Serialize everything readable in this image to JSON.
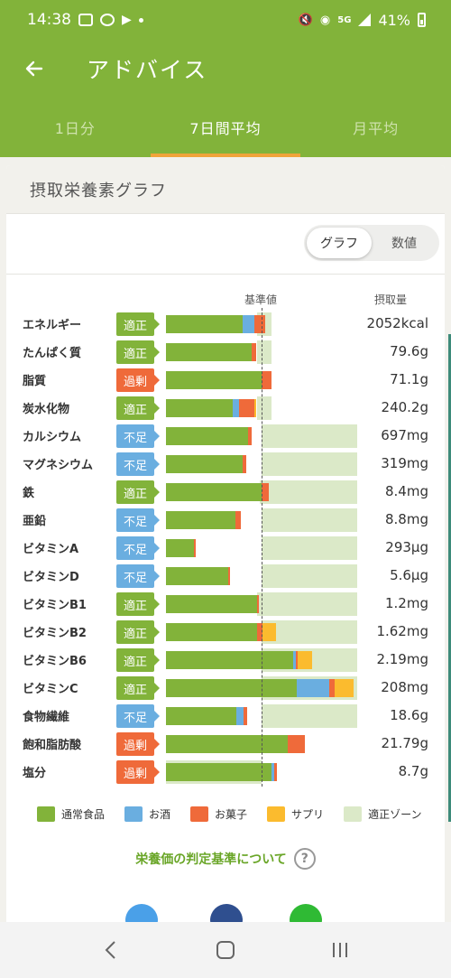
{
  "status": {
    "time": "14:38",
    "network": "5G",
    "battery": "41%"
  },
  "header": {
    "title": "アドバイス"
  },
  "tabs": [
    {
      "label": "1日分",
      "active": false
    },
    {
      "label": "7日間平均",
      "active": true
    },
    {
      "label": "月平均",
      "active": false
    }
  ],
  "card": {
    "title": "摂取栄養素グラフ"
  },
  "toggle": {
    "graph": "グラフ",
    "values": "数値",
    "selected": "graph"
  },
  "table": {
    "ref_label": "基準値",
    "intake_label": "摂取量"
  },
  "colors": {
    "food": "#82b33a",
    "alcohol": "#6aaee0",
    "snack": "#ef6a3a",
    "supplement": "#fbbb2e",
    "zone": "#dbe9c8"
  },
  "nutrients": [
    {
      "name": "エネルギー",
      "status": "適正",
      "kind": "ok",
      "value": "2052kcal",
      "food": 0.8,
      "alcohol": 0.12,
      "snack": 0.12,
      "supplement": 0.0,
      "zone": [
        0.95,
        1.1
      ]
    },
    {
      "name": "たんぱく質",
      "status": "適正",
      "kind": "ok",
      "value": "79.6g",
      "food": 0.9,
      "alcohol": 0.0,
      "snack": 0.04,
      "supplement": 0.0,
      "zone": [
        0.95,
        1.1
      ]
    },
    {
      "name": "脂質",
      "status": "過剰",
      "kind": "over",
      "value": "71.1g",
      "food": 1.0,
      "alcohol": 0.0,
      "snack": 0.1,
      "supplement": 0.0,
      "zone": [
        0.0,
        0.0
      ]
    },
    {
      "name": "炭水化物",
      "status": "適正",
      "kind": "ok",
      "value": "240.2g",
      "food": 0.7,
      "alcohol": 0.06,
      "snack": 0.16,
      "supplement": 0.02,
      "zone": [
        0.95,
        1.1
      ]
    },
    {
      "name": "カルシウム",
      "status": "不足",
      "kind": "short",
      "value": "697mg",
      "food": 0.86,
      "alcohol": 0.0,
      "snack": 0.04,
      "supplement": 0.0,
      "zone": [
        1.0,
        2.0
      ]
    },
    {
      "name": "マグネシウム",
      "status": "不足",
      "kind": "short",
      "value": "319mg",
      "food": 0.8,
      "alcohol": 0.0,
      "snack": 0.04,
      "supplement": 0.0,
      "zone": [
        1.0,
        2.0
      ]
    },
    {
      "name": "鉄",
      "status": "適正",
      "kind": "ok",
      "value": "8.4mg",
      "food": 1.0,
      "alcohol": 0.0,
      "snack": 0.08,
      "supplement": 0.0,
      "zone": [
        0.98,
        2.0
      ]
    },
    {
      "name": "亜鉛",
      "status": "不足",
      "kind": "short",
      "value": "8.8mg",
      "food": 0.73,
      "alcohol": 0.0,
      "snack": 0.05,
      "supplement": 0.0,
      "zone": [
        1.0,
        2.0
      ]
    },
    {
      "name": "ビタミンA",
      "status": "不足",
      "kind": "short",
      "value": "293µg",
      "food": 0.29,
      "alcohol": 0.0,
      "snack": 0.02,
      "supplement": 0.0,
      "zone": [
        1.0,
        2.0
      ]
    },
    {
      "name": "ビタミンD",
      "status": "不足",
      "kind": "short",
      "value": "5.6µg",
      "food": 0.65,
      "alcohol": 0.0,
      "snack": 0.01,
      "supplement": 0.0,
      "zone": [
        1.0,
        2.0
      ]
    },
    {
      "name": "ビタミンB1",
      "status": "適正",
      "kind": "ok",
      "value": "1.2mg",
      "food": 0.95,
      "alcohol": 0.0,
      "snack": 0.02,
      "supplement": 0.0,
      "zone": [
        0.95,
        2.0
      ]
    },
    {
      "name": "ビタミンB2",
      "status": "適正",
      "kind": "ok",
      "value": "1.62mg",
      "food": 0.95,
      "alcohol": 0.0,
      "snack": 0.06,
      "supplement": 0.14,
      "zone": [
        1.0,
        2.0
      ]
    },
    {
      "name": "ビタミンB6",
      "status": "適正",
      "kind": "ok",
      "value": "2.19mg",
      "food": 1.33,
      "alcohol": 0.03,
      "snack": 0.02,
      "supplement": 0.15,
      "zone": [
        1.0,
        2.0
      ]
    },
    {
      "name": "ビタミンC",
      "status": "適正",
      "kind": "ok",
      "value": "208mg",
      "food": 1.37,
      "alcohol": 0.34,
      "snack": 0.05,
      "supplement": 0.2,
      "zone": [
        1.0,
        2.0
      ]
    },
    {
      "name": "食物繊維",
      "status": "不足",
      "kind": "short",
      "value": "18.6g",
      "food": 0.74,
      "alcohol": 0.07,
      "snack": 0.04,
      "supplement": 0.0,
      "zone": [
        1.0,
        2.0
      ]
    },
    {
      "name": "飽和脂肪酸",
      "status": "過剰",
      "kind": "over",
      "value": "21.79g",
      "food": 1.27,
      "alcohol": 0.0,
      "snack": 0.18,
      "supplement": 0.0,
      "zone": [
        0.0,
        0.0
      ]
    },
    {
      "name": "塩分",
      "status": "過剰",
      "kind": "over",
      "value": "8.7g",
      "food": 1.1,
      "alcohol": 0.03,
      "snack": 0.03,
      "supplement": 0.0,
      "zone": [
        0.0,
        1.0
      ]
    }
  ],
  "legend": [
    {
      "key": "food",
      "label": "通常食品"
    },
    {
      "key": "alcohol",
      "label": "お酒"
    },
    {
      "key": "snack",
      "label": "お菓子"
    },
    {
      "key": "supplement",
      "label": "サプリ"
    },
    {
      "key": "zone",
      "label": "適正ゾーン"
    }
  ],
  "link": {
    "label": "栄養価の判定基準について",
    "help_icon": "?"
  },
  "share": [
    {
      "name": "twitter-icon",
      "color": "#4aa0e8"
    },
    {
      "name": "facebook-icon",
      "color": "#2f4f8f"
    },
    {
      "name": "line-icon",
      "color": "#2fba34"
    }
  ]
}
